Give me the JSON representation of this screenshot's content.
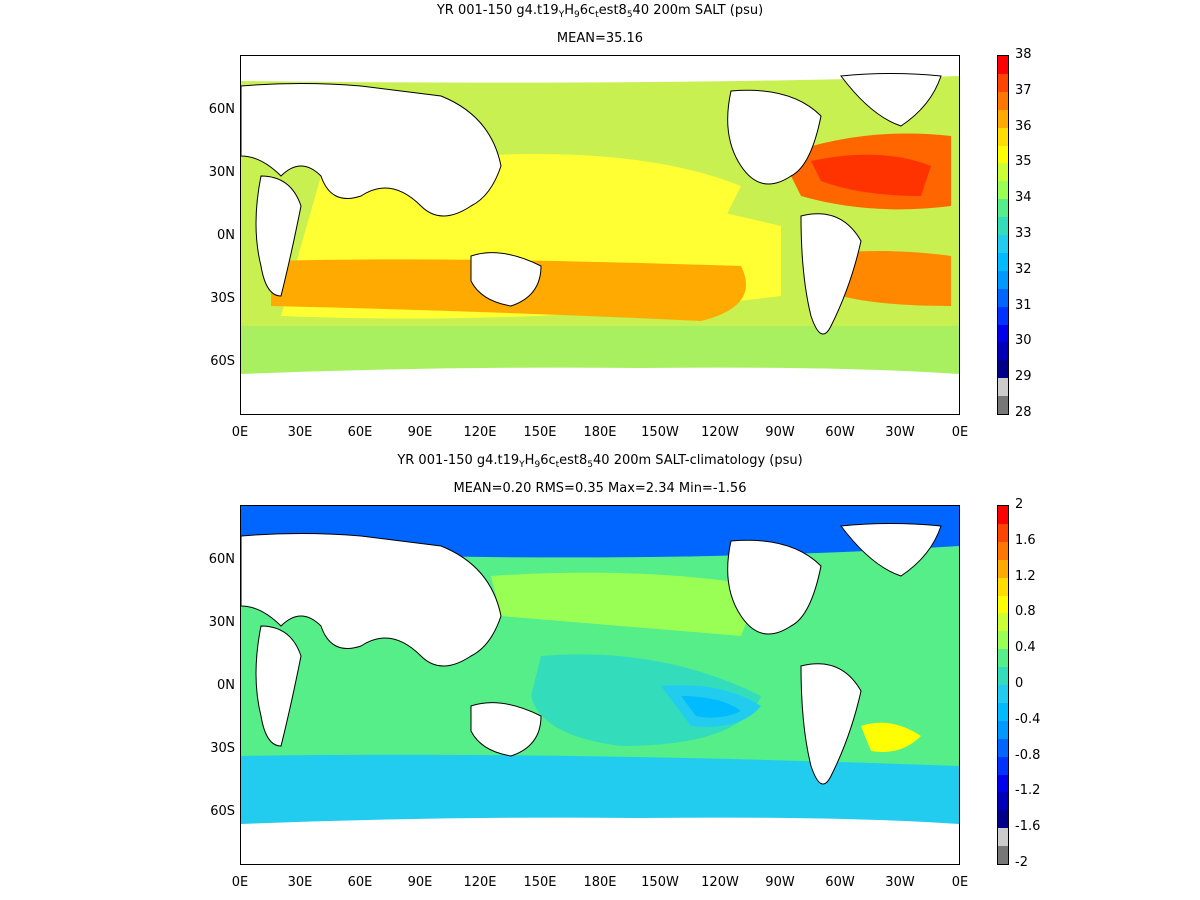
{
  "panels": [
    {
      "title_parts": [
        "YR 001-150 g4.t19",
        "Y",
        "H",
        "9",
        "6c",
        "t",
        "est8",
        "5",
        "40 200m SALT (psu)"
      ],
      "subtitle": "MEAN=35.16",
      "colorbar_labels": [
        "38",
        "37",
        "36",
        "35",
        "34",
        "33",
        "32",
        "31",
        "30",
        "29",
        "28"
      ],
      "colorbar_colors": [
        "#ff0000",
        "#ff4400",
        "#ff7700",
        "#ffaa00",
        "#ffdd00",
        "#ffff00",
        "#ccff33",
        "#99ff55",
        "#55ee88",
        "#33ddbb",
        "#22ccee",
        "#00bbff",
        "#0099ff",
        "#0066ff",
        "#0033ff",
        "#0000ee",
        "#0000bb",
        "#000088",
        "#cccccc",
        "#777777"
      ]
    },
    {
      "title_parts": [
        "YR 001-150 g4.t19",
        "Y",
        "H",
        "9",
        "6c",
        "t",
        "est8",
        "5",
        "40 200m SALT-climatology (psu)"
      ],
      "subtitle": "MEAN=0.20   RMS=0.35   Max=2.34   Min=-1.56",
      "colorbar_labels": [
        "2",
        "1.6",
        "1.2",
        "0.8",
        "0.4",
        "0",
        "-0.4",
        "-0.8",
        "-1.2",
        "-1.6",
        "-2"
      ],
      "colorbar_colors": [
        "#ff0000",
        "#ff4400",
        "#ff7700",
        "#ffaa00",
        "#ffdd00",
        "#ffff00",
        "#ccff33",
        "#99ff55",
        "#55ee88",
        "#33ddbb",
        "#22ccee",
        "#00bbff",
        "#0099ff",
        "#0066ff",
        "#0033ff",
        "#0000ee",
        "#0000bb",
        "#000088",
        "#cccccc",
        "#777777"
      ]
    }
  ],
  "lat_labels": [
    "60N",
    "30N",
    "0N",
    "30S",
    "60S"
  ],
  "lon_labels": [
    "0E",
    "30E",
    "60E",
    "90E",
    "120E",
    "150E",
    "180E",
    "150W",
    "120W",
    "90W",
    "60W",
    "30W",
    "0E"
  ]
}
